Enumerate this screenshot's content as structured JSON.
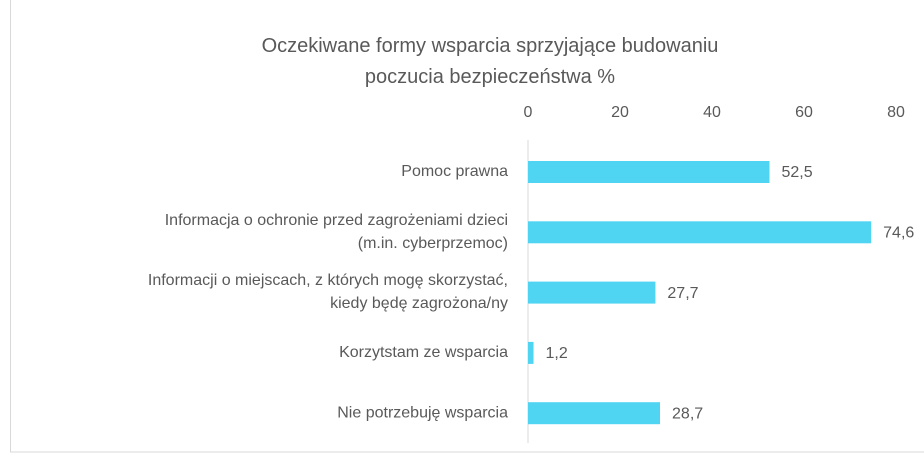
{
  "chart_data": {
    "type": "bar",
    "orientation": "horizontal",
    "title": "Oczekiwane formy wsparcia  sprzyjające  budowaniu\npoczucia bezpieczeństwa %",
    "categories": [
      "Pomoc prawna",
      "Informacja o ochronie przed zagrożeniami dzieci\n(m.in. cyberprzemoc)",
      "Informacji o miejscach, z których mogę skorzystać,\nkiedy będę zagrożona/ny",
      "Korzytstam ze wsparcia",
      "Nie potrzebuję wsparcia"
    ],
    "values": [
      52.5,
      74.6,
      27.7,
      1.2,
      28.7
    ],
    "value_labels": [
      "52,5",
      "74,6",
      "27,7",
      "1,2",
      "28,7"
    ],
    "color": "#4fd4f2",
    "xlim": [
      0,
      80
    ],
    "xticks": [
      0,
      20,
      40,
      60,
      80
    ]
  }
}
